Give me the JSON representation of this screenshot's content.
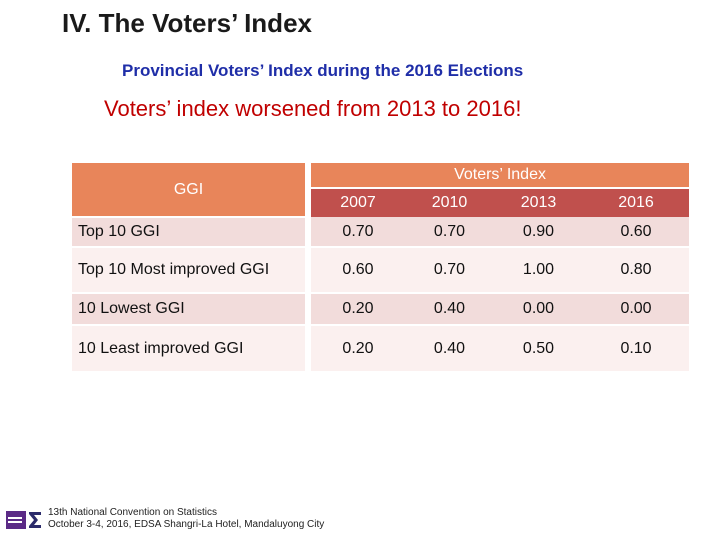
{
  "slide": {
    "title": "IV. The Voters’ Index",
    "subtitle": "Provincial Voters’ Index during the 2016 Elections",
    "headline": "Voters’ index worsened from 2013 to 2016!"
  },
  "table": {
    "row_header": "GGI",
    "group_header": "Voters’ Index",
    "years": [
      "2007",
      "2010",
      "2013",
      "2016"
    ],
    "rows": [
      {
        "label": "Top 10 GGI",
        "values": [
          "0.70",
          "0.70",
          "0.90",
          "0.60"
        ]
      },
      {
        "label": "Top 10 Most improved GGI",
        "values": [
          "0.60",
          "0.70",
          "1.00",
          "0.80"
        ]
      },
      {
        "label": "10 Lowest GGI",
        "values": [
          "0.20",
          "0.40",
          "0.00",
          "0.00"
        ]
      },
      {
        "label": "10 Least improved GGI",
        "values": [
          "0.20",
          "0.40",
          "0.50",
          "0.10"
        ]
      }
    ]
  },
  "footer": {
    "line1": "13th National Convention on Statistics",
    "line2": "October 3-4, 2016, EDSA Shangri-La Hotel, Mandaluyong City"
  },
  "colors": {
    "header_orange": "#e8855a",
    "year_red": "#c0504d",
    "row_pink": "#f2dcdb",
    "subtitle_blue": "#1f2ea8",
    "headline_red": "#c00000"
  }
}
